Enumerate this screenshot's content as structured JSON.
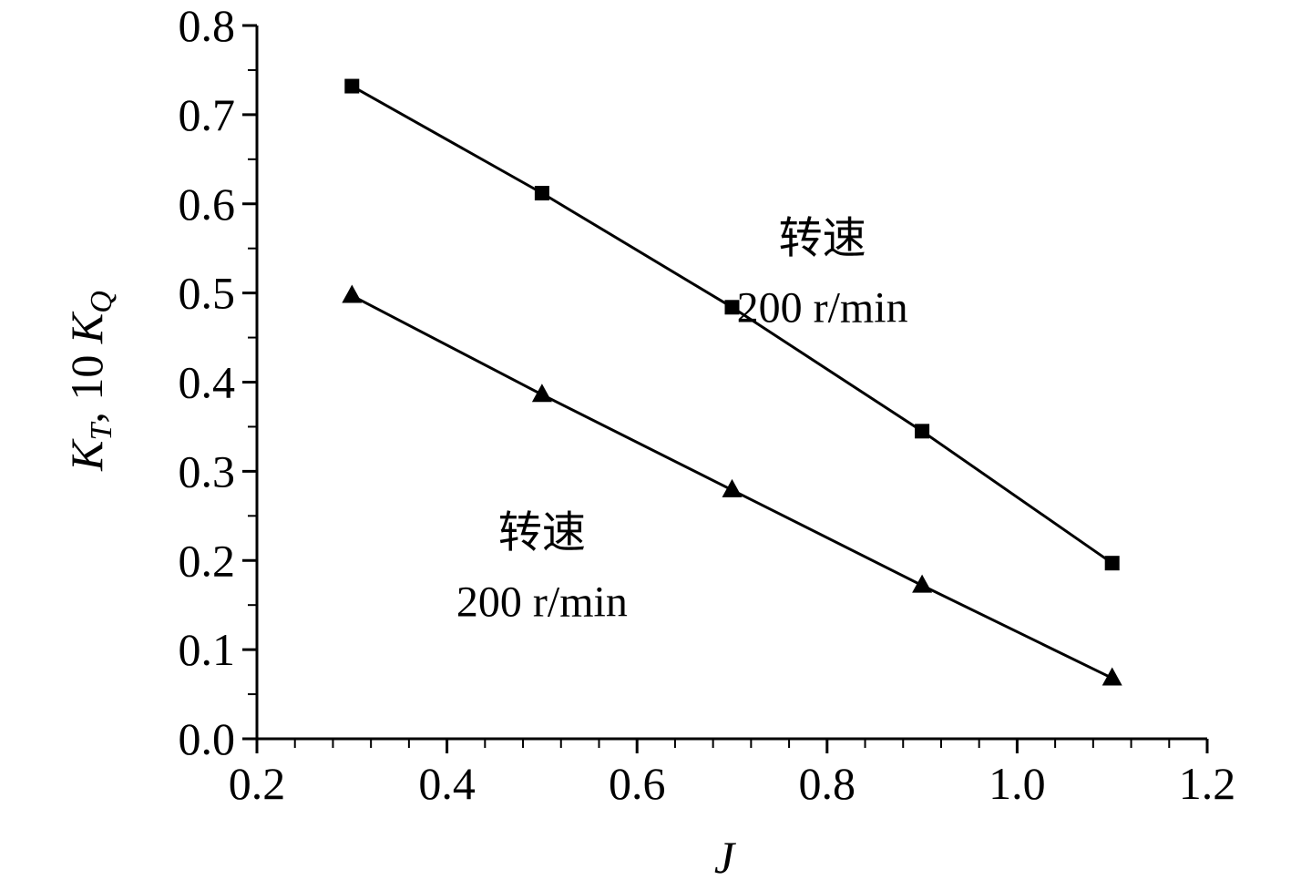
{
  "chart_data": {
    "type": "line",
    "xlabel": "J",
    "ylabel_parts": [
      "K",
      "T",
      ", 10 ",
      "K",
      "Q"
    ],
    "xlim": [
      0.2,
      1.2
    ],
    "ylim": [
      0.0,
      0.8
    ],
    "xticks": [
      "0.2",
      "0.4",
      "0.6",
      "0.8",
      "1.0",
      "1.2"
    ],
    "yticks": [
      "0.0",
      "0.1",
      "0.2",
      "0.3",
      "0.4",
      "0.5",
      "0.6",
      "0.7",
      "0.8"
    ],
    "grid": false,
    "series": [
      {
        "marker": "square",
        "color": "#000000",
        "x": [
          0.3,
          0.5,
          0.7,
          0.9,
          1.1
        ],
        "y": [
          0.732,
          0.612,
          0.484,
          0.345,
          0.197
        ]
      },
      {
        "marker": "triangle",
        "color": "#000000",
        "x": [
          0.3,
          0.5,
          0.7,
          0.9,
          1.1
        ],
        "y": [
          0.497,
          0.386,
          0.279,
          0.172,
          0.068
        ]
      }
    ],
    "annotations": [
      {
        "line1": "转速",
        "line2": "200 r/min",
        "x": 0.795,
        "y": 0.545
      },
      {
        "line1": "转速",
        "line2": "200 r/min",
        "x": 0.5,
        "y": 0.215
      }
    ]
  }
}
